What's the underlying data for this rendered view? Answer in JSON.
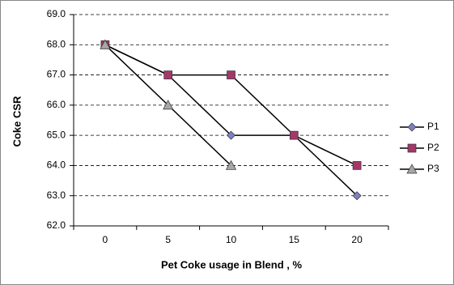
{
  "chart_data": {
    "type": "line",
    "x_label": "Pet Coke usage in Blend , %",
    "y_label": "Coke CSR",
    "categories": [
      "0",
      "5",
      "10",
      "15",
      "20"
    ],
    "series": [
      {
        "name": "P1",
        "color": "#7f7fc4",
        "marker": "diamond",
        "values": [
          68,
          67,
          65,
          65,
          63
        ]
      },
      {
        "name": "P2",
        "color": "#a3386a",
        "marker": "square",
        "values": [
          68,
          67,
          67,
          65,
          64
        ]
      },
      {
        "name": "P3",
        "color": "#a6a6a6",
        "marker": "triangle",
        "values": [
          68,
          66,
          64,
          null,
          null
        ]
      }
    ],
    "ylim": [
      62,
      69
    ],
    "yticks": [
      {
        "value": 62,
        "label": "62.0"
      },
      {
        "value": 63,
        "label": "63.0"
      },
      {
        "value": 64,
        "label": "64.0"
      },
      {
        "value": 65,
        "label": "65.0"
      },
      {
        "value": 66,
        "label": "66.0"
      },
      {
        "value": 67,
        "label": "67.0"
      },
      {
        "value": 68,
        "label": "68.0"
      },
      {
        "value": 69,
        "label": "69.0"
      }
    ],
    "grid": true,
    "legend": "right"
  }
}
